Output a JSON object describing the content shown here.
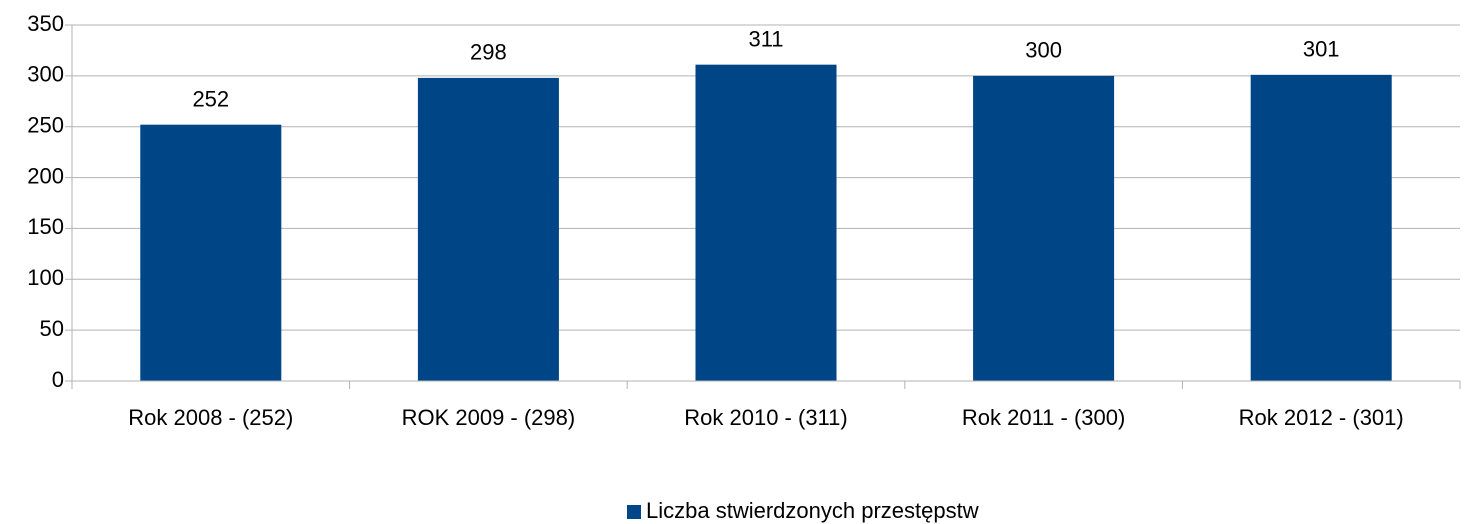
{
  "chart_data": {
    "type": "bar",
    "categories": [
      "Rok 2008 - (252)",
      "ROK 2009 - (298)",
      "Rok 2010 - (311)",
      "Rok 2011 - (300)",
      "Rok 2012 - (301)"
    ],
    "series": [
      {
        "name": "Liczba stwierdzonych przestępstw",
        "color": "#004586",
        "values": [
          252,
          298,
          311,
          300,
          301
        ]
      }
    ],
    "ylim": [
      0,
      350
    ],
    "yticks": [
      0,
      50,
      100,
      150,
      200,
      250,
      300,
      350
    ],
    "grid": true,
    "legend": "bottom",
    "data_labels": true
  }
}
